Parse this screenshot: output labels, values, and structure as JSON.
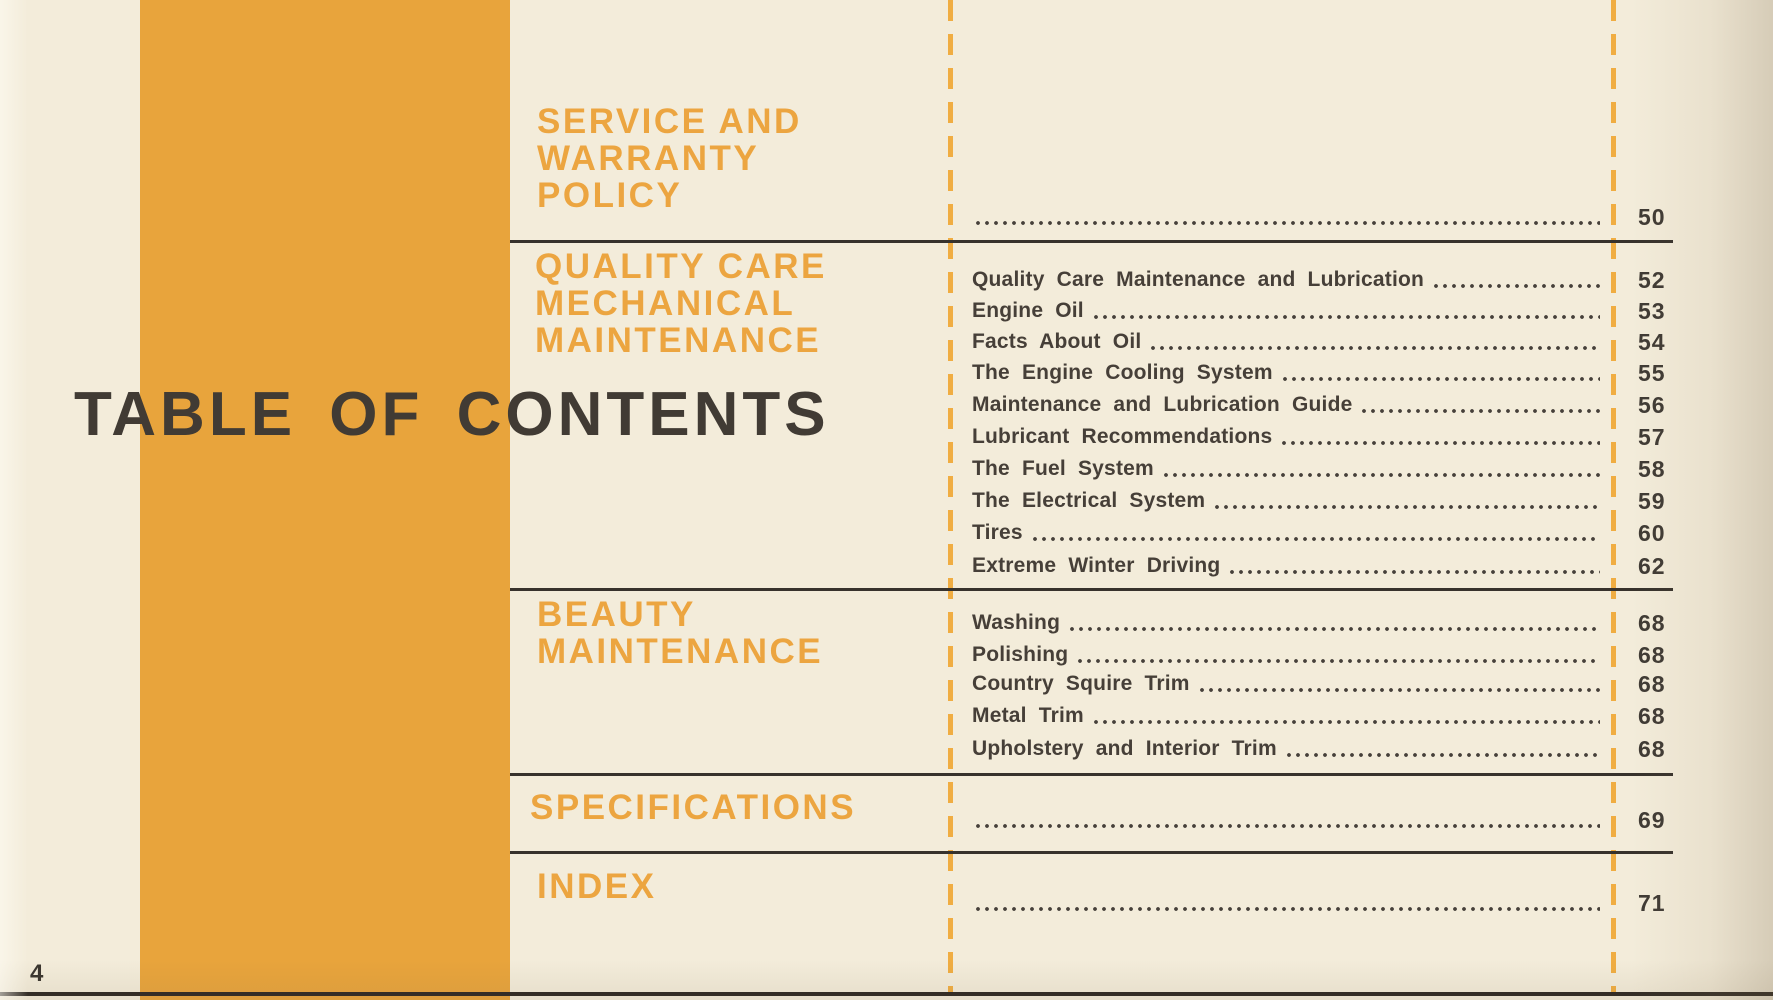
{
  "title": "TABLE OF CONTENTS",
  "page_footer": {
    "page_number": "4"
  },
  "colors": {
    "paper": "#f3ecda",
    "stripe_orange": "#e8a43c",
    "dashed_line_orange": "#f0ad42",
    "heading_orange": "#eca540",
    "ink_dark": "#413b34",
    "rule_dark": "#37322c"
  },
  "sections": [
    {
      "id": "service",
      "heading_lines": [
        "SERVICE AND",
        "WARRANTY",
        "POLICY"
      ],
      "entries": [
        {
          "title": "",
          "page": "50"
        }
      ]
    },
    {
      "id": "quality",
      "heading_lines": [
        "QUALITY CARE",
        "MECHANICAL",
        "MAINTENANCE"
      ],
      "entries": [
        {
          "title": "Quality Care Maintenance and Lubrication",
          "page": "52"
        },
        {
          "title": "Engine Oil",
          "page": "53"
        },
        {
          "title": "Facts About Oil",
          "page": "54"
        },
        {
          "title": "The Engine Cooling System",
          "page": "55"
        },
        {
          "title": "Maintenance and Lubrication Guide",
          "page": "56"
        },
        {
          "title": "Lubricant Recommendations",
          "page": "57"
        },
        {
          "title": "The Fuel System",
          "page": "58"
        },
        {
          "title": "The Electrical System",
          "page": "59"
        },
        {
          "title": "Tires",
          "page": "60"
        },
        {
          "title": "Extreme Winter Driving",
          "page": "62"
        }
      ]
    },
    {
      "id": "beauty",
      "heading_lines": [
        "BEAUTY",
        "MAINTENANCE"
      ],
      "entries": [
        {
          "title": "Washing",
          "page": "68"
        },
        {
          "title": "Polishing",
          "page": "68"
        },
        {
          "title": "Country Squire Trim",
          "page": "68"
        },
        {
          "title": "Metal Trim",
          "page": "68"
        },
        {
          "title": "Upholstery and Interior Trim",
          "page": "68"
        }
      ]
    },
    {
      "id": "specifications",
      "heading_lines": [
        "SPECIFICATIONS"
      ],
      "entries": [
        {
          "title": "",
          "page": "69"
        }
      ]
    },
    {
      "id": "index",
      "heading_lines": [
        "INDEX"
      ],
      "entries": [
        {
          "title": "",
          "page": "71"
        }
      ]
    }
  ]
}
